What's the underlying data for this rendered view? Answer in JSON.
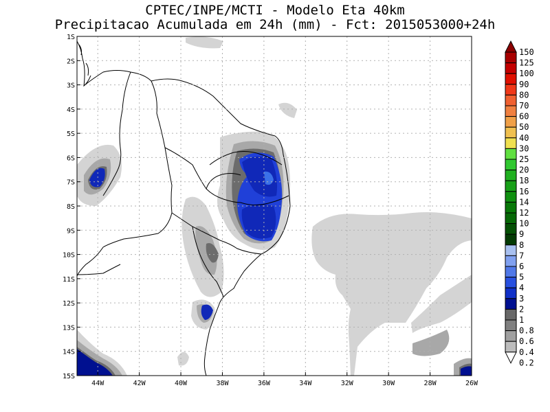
{
  "header": {
    "line1": "CPTEC/INPE/MCTI - Modelo Eta 40km",
    "line2": "Precipitacao Acumulada em 24h (mm) - Fct: 2015053000+24h"
  },
  "map": {
    "lon_range": [
      -45,
      -26
    ],
    "lat_range": [
      -15,
      -1
    ],
    "lat_labels": [
      "1S",
      "2S",
      "3S",
      "4S",
      "5S",
      "6S",
      "7S",
      "8S",
      "9S",
      "10S",
      "11S",
      "12S",
      "13S",
      "14S",
      "15S"
    ],
    "lon_labels": [
      "44W",
      "42W",
      "40W",
      "38W",
      "36W",
      "34W",
      "32W",
      "30W",
      "28W",
      "26W"
    ],
    "grid": true
  },
  "colorbar": {
    "labels": [
      "150",
      "125",
      "100",
      "90",
      "80",
      "70",
      "60",
      "50",
      "40",
      "30",
      "25",
      "20",
      "18",
      "16",
      "14",
      "12",
      "10",
      "9",
      "8",
      "7",
      "6",
      "5",
      "4",
      "3",
      "2",
      "1",
      "0.8",
      "0.6",
      "0.4",
      "0.2"
    ],
    "colors": [
      "#8b0000",
      "#a80000",
      "#c40000",
      "#e01000",
      "#f03818",
      "#f06030",
      "#f08040",
      "#f0a048",
      "#f0c050",
      "#f0e050",
      "#60e040",
      "#30c830",
      "#20b020",
      "#18a018",
      "#109010",
      "#087808",
      "#066806",
      "#045004",
      "#033a03",
      "#a8c0f0",
      "#80a0f0",
      "#5078e8",
      "#2850e0",
      "#1030c8",
      "#001090",
      "#686868",
      "#808080",
      "#a0a0a0",
      "#bcbcbc",
      "#d8d8d8"
    ]
  }
}
